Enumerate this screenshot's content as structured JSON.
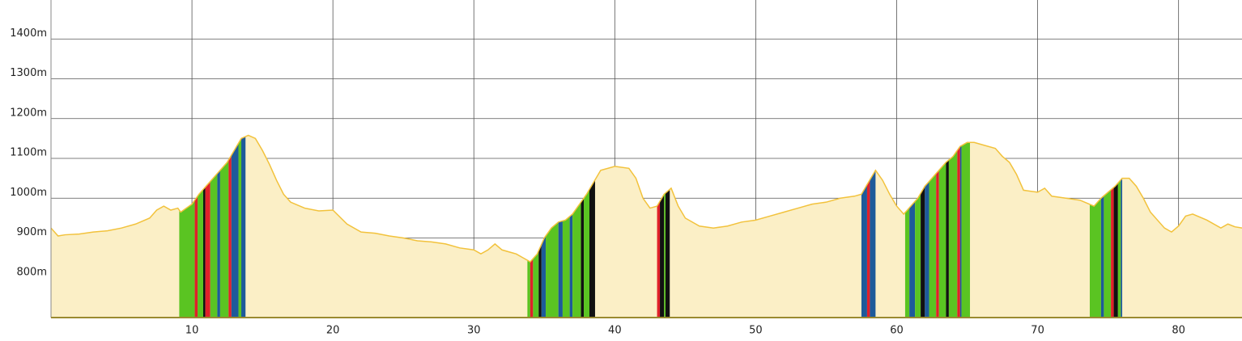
{
  "chart_data": {
    "type": "area",
    "x": [
      0,
      0.5,
      1,
      2,
      3,
      4,
      5,
      6,
      7,
      7.5,
      8,
      8.5,
      9,
      9.2,
      10,
      10.5,
      11,
      11.5,
      12,
      12.5,
      13,
      13.5,
      14,
      14.5,
      15,
      15.5,
      16,
      16.5,
      17,
      18,
      19,
      20,
      21,
      22,
      23,
      24,
      25,
      26,
      27,
      28,
      29,
      30,
      30.5,
      31,
      31.5,
      32,
      33,
      33.5,
      34,
      34.5,
      35,
      35.5,
      36,
      36.5,
      37,
      37.5,
      38,
      38.5,
      39,
      40,
      41,
      41.5,
      42,
      42.5,
      43,
      43.5,
      44,
      44.5,
      45,
      46,
      47,
      48,
      49,
      50,
      51,
      52,
      53,
      54,
      55,
      56,
      57,
      57.5,
      58,
      58.5,
      59,
      59.5,
      60,
      60.5,
      61,
      61.5,
      62,
      62.5,
      63,
      63.5,
      64,
      64.5,
      65,
      65.5,
      66,
      67,
      67.5,
      68,
      68.5,
      69,
      70,
      70.5,
      71,
      72,
      73,
      74,
      74.5,
      75,
      75.5,
      76,
      76.5,
      77,
      77.5,
      78,
      79,
      79.5,
      80,
      80.5,
      81,
      82,
      83,
      83.5,
      84,
      84.5
    ],
    "values": [
      925,
      905,
      908,
      910,
      915,
      918,
      925,
      935,
      950,
      970,
      980,
      970,
      975,
      965,
      985,
      1010,
      1030,
      1050,
      1070,
      1090,
      1120,
      1150,
      1158,
      1150,
      1120,
      1085,
      1045,
      1010,
      990,
      975,
      968,
      970,
      935,
      915,
      912,
      905,
      900,
      893,
      890,
      885,
      875,
      870,
      860,
      870,
      885,
      870,
      860,
      850,
      840,
      860,
      900,
      925,
      940,
      945,
      960,
      985,
      1010,
      1040,
      1070,
      1080,
      1075,
      1050,
      1000,
      975,
      980,
      1010,
      1025,
      980,
      950,
      930,
      925,
      930,
      940,
      945,
      955,
      965,
      975,
      985,
      990,
      1000,
      1005,
      1010,
      1040,
      1070,
      1045,
      1010,
      980,
      960,
      980,
      1000,
      1030,
      1050,
      1070,
      1090,
      1105,
      1130,
      1140,
      1140,
      1135,
      1125,
      1105,
      1090,
      1060,
      1020,
      1015,
      1025,
      1005,
      1000,
      995,
      980,
      1000,
      1015,
      1030,
      1050,
      1050,
      1030,
      1000,
      965,
      925,
      915,
      930,
      955,
      960,
      945,
      925,
      935,
      928,
      925
    ],
    "color": "#f2c23c",
    "fill": "#fbefc6",
    "stripes": [
      {
        "x0": 9.1,
        "x1": 10.2,
        "color": "#5ac422"
      },
      {
        "x0": 10.2,
        "x1": 10.4,
        "color": "#e0202a"
      },
      {
        "x0": 10.4,
        "x1": 10.8,
        "color": "#5ac422"
      },
      {
        "x0": 10.8,
        "x1": 10.95,
        "color": "#111111"
      },
      {
        "x0": 10.95,
        "x1": 11.3,
        "color": "#e0202a"
      },
      {
        "x0": 11.3,
        "x1": 11.8,
        "color": "#5ac422"
      },
      {
        "x0": 11.8,
        "x1": 12.0,
        "color": "#1e5a9a"
      },
      {
        "x0": 12.0,
        "x1": 12.6,
        "color": "#5ac422"
      },
      {
        "x0": 12.6,
        "x1": 12.8,
        "color": "#e0202a"
      },
      {
        "x0": 12.8,
        "x1": 13.3,
        "color": "#1e5a9a"
      },
      {
        "x0": 13.3,
        "x1": 13.5,
        "color": "#5ac422"
      },
      {
        "x0": 13.5,
        "x1": 13.8,
        "color": "#1e5a9a"
      },
      {
        "x0": 33.8,
        "x1": 34.0,
        "color": "#5ac422"
      },
      {
        "x0": 34.0,
        "x1": 34.2,
        "color": "#e0202a"
      },
      {
        "x0": 34.2,
        "x1": 34.6,
        "color": "#5ac422"
      },
      {
        "x0": 34.6,
        "x1": 34.8,
        "color": "#111111"
      },
      {
        "x0": 34.8,
        "x1": 35.1,
        "color": "#1e5a9a"
      },
      {
        "x0": 35.1,
        "x1": 36.0,
        "color": "#5ac422"
      },
      {
        "x0": 36.0,
        "x1": 36.3,
        "color": "#1e5a9a"
      },
      {
        "x0": 36.3,
        "x1": 36.8,
        "color": "#5ac422"
      },
      {
        "x0": 36.8,
        "x1": 37.0,
        "color": "#1e5a9a"
      },
      {
        "x0": 37.0,
        "x1": 37.6,
        "color": "#5ac422"
      },
      {
        "x0": 37.6,
        "x1": 37.8,
        "color": "#111111"
      },
      {
        "x0": 37.8,
        "x1": 38.2,
        "color": "#5ac422"
      },
      {
        "x0": 38.2,
        "x1": 38.6,
        "color": "#111111"
      },
      {
        "x0": 43.0,
        "x1": 43.2,
        "color": "#e0202a"
      },
      {
        "x0": 43.2,
        "x1": 43.5,
        "color": "#111111"
      },
      {
        "x0": 43.5,
        "x1": 43.6,
        "color": "#5ac422"
      },
      {
        "x0": 43.6,
        "x1": 43.9,
        "color": "#111111"
      },
      {
        "x0": 57.5,
        "x1": 57.9,
        "color": "#1e5a9a"
      },
      {
        "x0": 57.9,
        "x1": 58.1,
        "color": "#e0202a"
      },
      {
        "x0": 58.1,
        "x1": 58.5,
        "color": "#1e5a9a"
      },
      {
        "x0": 60.6,
        "x1": 60.9,
        "color": "#5ac422"
      },
      {
        "x0": 60.9,
        "x1": 61.3,
        "color": "#1e5a9a"
      },
      {
        "x0": 61.3,
        "x1": 61.7,
        "color": "#5ac422"
      },
      {
        "x0": 61.7,
        "x1": 62.0,
        "color": "#111111"
      },
      {
        "x0": 62.0,
        "x1": 62.3,
        "color": "#1e5a9a"
      },
      {
        "x0": 62.3,
        "x1": 62.8,
        "color": "#5ac422"
      },
      {
        "x0": 62.8,
        "x1": 63.0,
        "color": "#e0202a"
      },
      {
        "x0": 63.0,
        "x1": 63.5,
        "color": "#5ac422"
      },
      {
        "x0": 63.5,
        "x1": 63.7,
        "color": "#111111"
      },
      {
        "x0": 63.7,
        "x1": 64.3,
        "color": "#5ac422"
      },
      {
        "x0": 64.3,
        "x1": 64.5,
        "color": "#e0202a"
      },
      {
        "x0": 64.5,
        "x1": 64.6,
        "color": "#1e5a9a"
      },
      {
        "x0": 64.6,
        "x1": 65.2,
        "color": "#5ac422"
      },
      {
        "x0": 73.7,
        "x1": 74.5,
        "color": "#5ac422"
      },
      {
        "x0": 74.5,
        "x1": 74.7,
        "color": "#1e5a9a"
      },
      {
        "x0": 74.7,
        "x1": 75.2,
        "color": "#5ac422"
      },
      {
        "x0": 75.2,
        "x1": 75.4,
        "color": "#e0202a"
      },
      {
        "x0": 75.4,
        "x1": 75.7,
        "color": "#111111"
      },
      {
        "x0": 75.7,
        "x1": 75.9,
        "color": "#5ac422"
      },
      {
        "x0": 75.9,
        "x1": 76.0,
        "color": "#1e5a9a"
      }
    ],
    "xlim": [
      0,
      84.5
    ],
    "ylim": [
      700,
      1500
    ],
    "xticks": [
      10,
      20,
      30,
      40,
      50,
      60,
      70,
      80
    ],
    "yticks": [
      {
        "value": 800,
        "label": "800m"
      },
      {
        "value": 900,
        "label": "900m"
      },
      {
        "value": 1000,
        "label": "1000m"
      },
      {
        "value": 1100,
        "label": "1100m"
      },
      {
        "value": 1200,
        "label": "1200m"
      },
      {
        "value": 1300,
        "label": "1300m"
      },
      {
        "value": 1400,
        "label": "1400m"
      }
    ],
    "grid": true
  }
}
